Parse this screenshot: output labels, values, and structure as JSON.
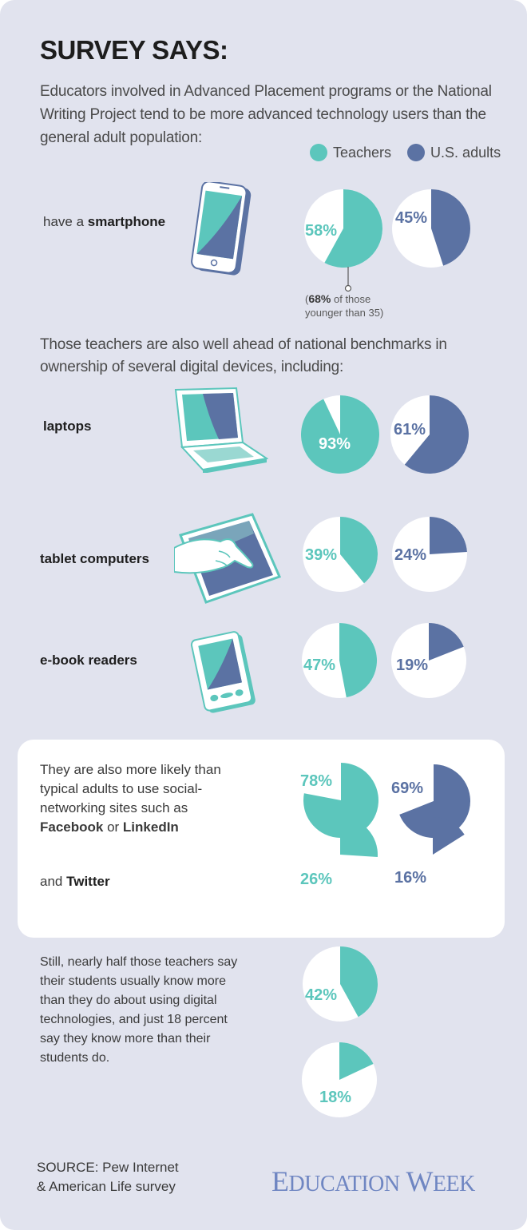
{
  "title": "SURVEY SAYS:",
  "intro": "Educators involved in Advanced Placement programs or the National Writing Project tend to be more advanced technology users than the general adult population:",
  "colors": {
    "teachers": "#5cc6bc",
    "adults": "#5b72a3",
    "pie_bg": "#ffffff",
    "background": "#e1e3ee"
  },
  "legend": {
    "teachers": "Teachers",
    "adults": "U.S. adults"
  },
  "rows": {
    "smartphone": {
      "prefix": "have a ",
      "bold": "smartphone"
    },
    "laptops": {
      "bold": "laptops"
    },
    "tablets": {
      "bold": "tablet computers"
    },
    "ereaders": {
      "bold": "e-book readers"
    }
  },
  "smartphone_note": {
    "bold": "68%",
    "text1": " of those",
    "text2": "younger than 35)",
    "open": "("
  },
  "mid_text": "Those teachers are also well ahead of national benchmarks in ownership of several digital devices, including:",
  "social": {
    "line1": "They are also more likely than typical adults to use social-networking sites such as",
    "facebook": "Facebook",
    "or": " or ",
    "linkedin": "LinkedIn",
    "and": "and ",
    "twitter": "Twitter"
  },
  "still_text": "Still, nearly half those teachers say their students usually know more than they do about using digital technologies, and just 18 percent say they know more than their students do.",
  "source": {
    "line1": "SOURCE: Pew Internet",
    "line2": "& American Life survey"
  },
  "logo": {
    "e": "E",
    "ducation": "DUCATION",
    "w": "W",
    "eek": "EEK"
  },
  "chart_data": {
    "type": "pie",
    "series": [
      {
        "name": "Teachers",
        "values": {
          "smartphone": 58,
          "laptops": 93,
          "tablets": 39,
          "ereaders": 47,
          "facebook_linkedin": 78,
          "twitter": 26
        }
      },
      {
        "name": "U.S. adults",
        "values": {
          "smartphone": 45,
          "laptops": 61,
          "tablets": 24,
          "ereaders": 19,
          "facebook_linkedin": 69,
          "twitter": 16
        }
      }
    ],
    "extra": {
      "students_know_more": 42,
      "teachers_know_more": 18
    },
    "labels": {
      "t_smartphone": "58%",
      "a_smartphone": "45%",
      "t_laptops": "93%",
      "a_laptops": "61%",
      "t_tablets": "39%",
      "a_tablets": "24%",
      "t_ereaders": "47%",
      "a_ereaders": "19%",
      "t_facebook": "78%",
      "a_facebook": "69%",
      "t_twitter": "26%",
      "a_twitter": "16%",
      "students": "42%",
      "teachers18": "18%"
    }
  }
}
